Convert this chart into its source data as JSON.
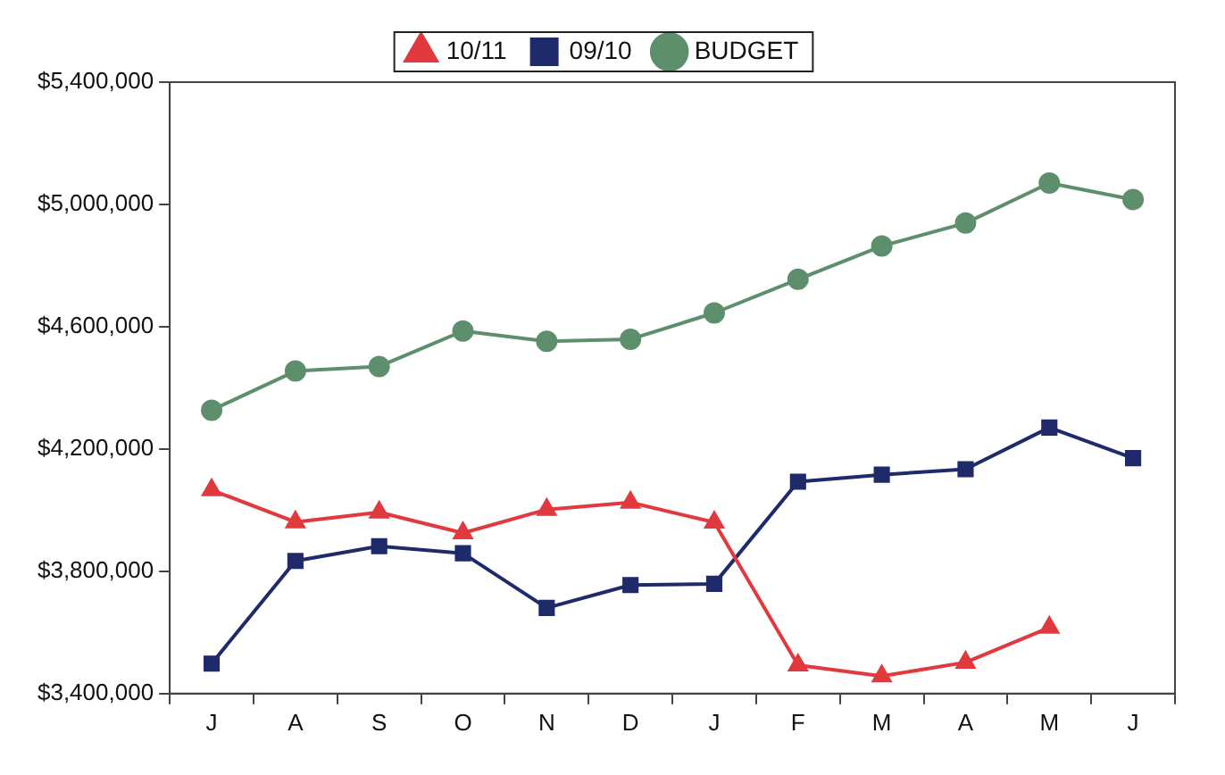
{
  "chart_data": {
    "type": "line",
    "categories": [
      "J",
      "A",
      "S",
      "O",
      "N",
      "D",
      "J",
      "F",
      "M",
      "A",
      "M",
      "J"
    ],
    "series": [
      {
        "name": "10/11",
        "color": "#e0393e",
        "marker": "triangle",
        "values": [
          4066000,
          3961000,
          3993000,
          3925000,
          4002000,
          4025000,
          3960000,
          3493000,
          3457000,
          3502000,
          3616000,
          null
        ]
      },
      {
        "name": "09/10",
        "color": "#1f2a6b",
        "marker": "square",
        "values": [
          3498000,
          3834000,
          3882000,
          3859000,
          3680000,
          3755000,
          3759000,
          4093000,
          4116000,
          4134000,
          4270000,
          4170000
        ]
      },
      {
        "name": "BUDGET",
        "color": "#5e8f6c",
        "marker": "circle",
        "values": [
          4327000,
          4455000,
          4470000,
          4586000,
          4552000,
          4559000,
          4645000,
          4755000,
          4864000,
          4939000,
          5070000,
          5016000
        ]
      }
    ],
    "ylim": [
      3400000,
      5400000
    ],
    "yticks": [
      {
        "value": 3400000,
        "label": "$3,400,000"
      },
      {
        "value": 3800000,
        "label": "$3,800,000"
      },
      {
        "value": 4200000,
        "label": "$4,200,000"
      },
      {
        "value": 4600000,
        "label": "$4,600,000"
      },
      {
        "value": 5000000,
        "label": "$5,000,000"
      },
      {
        "value": 5400000,
        "label": "$5,400,000"
      }
    ],
    "legend": "top",
    "grid": false,
    "line_style": "solid"
  }
}
